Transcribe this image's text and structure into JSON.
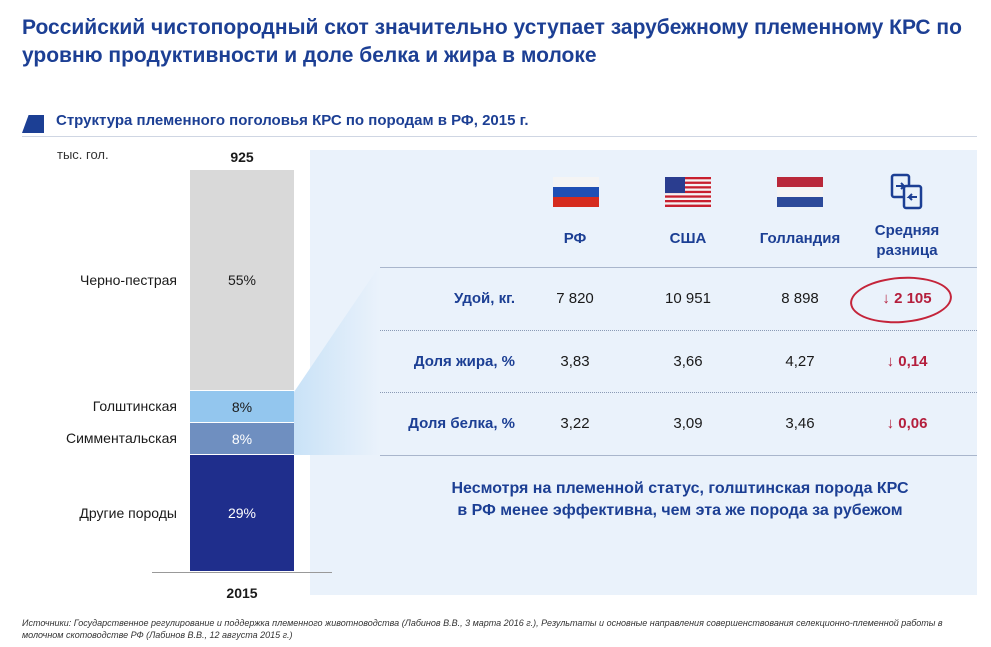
{
  "title": "Российский чистопородный скот значительно уступает зарубежному племенному КРС по уровню продуктивности и доле белка и жира в молоке",
  "section_title": "Структура племенного поголовья КРС по породам в РФ, 2015 г.",
  "colors": {
    "brand": "#1c3f94",
    "accent_red": "#b41e3c",
    "panel_bg": "#eaf2fb"
  },
  "chart_data": {
    "type": "bar",
    "stacked": true,
    "title": "Структура племенного поголовья КРС по породам в РФ, 2015 г.",
    "ylabel": "тыс. гол.",
    "categories": [
      "2015"
    ],
    "total": 925,
    "total_label": "925",
    "year_label": "2015",
    "series": [
      {
        "name": "Другие породы",
        "values": [
          29
        ],
        "label": "29%",
        "color": "#1f2e8c"
      },
      {
        "name": "Симментальская",
        "values": [
          8
        ],
        "label": "8%",
        "color": "#6f8fc0"
      },
      {
        "name": "Голштинская",
        "values": [
          8
        ],
        "label": "8%",
        "color": "#93c6ee"
      },
      {
        "name": "Черно-пестрая",
        "values": [
          55
        ],
        "label": "55%",
        "color": "#d9d9d9"
      }
    ]
  },
  "comparison": {
    "columns": [
      {
        "label": "РФ",
        "flag": "russia-flag"
      },
      {
        "label": "США",
        "flag": "usa-flag"
      },
      {
        "label": "Голландия",
        "flag": "netherlands-flag"
      }
    ],
    "diff_header_line1": "Средняя",
    "diff_header_line2": "разница",
    "diff_icon": "compare-icon",
    "rows": [
      {
        "label": "Удой, кг.",
        "values": [
          "7 820",
          "10 951",
          "8 898"
        ],
        "diff_arrow": "↓",
        "diff": "2 105"
      },
      {
        "label": "Доля жира, %",
        "values": [
          "3,83",
          "3,66",
          "4,27"
        ],
        "diff_arrow": "↓",
        "diff": "0,14"
      },
      {
        "label": "Доля белка, %",
        "values": [
          "3,22",
          "3,09",
          "3,46"
        ],
        "diff_arrow": "↓",
        "diff": "0,06"
      }
    ]
  },
  "conclusion_line1": "Несмотря на племенной статус, голштинская порода КРС",
  "conclusion_line2": "в РФ менее эффективна, чем эта же порода за рубежом",
  "source": "Источники: Государственное регулирование и поддержка племенного животноводства (Лабинов В.В., 3 марта 2016 г.), Результаты и основные направления совершенствования селекционно-племенной работы в молочном скотоводстве РФ (Лабинов В.В., 12 августа 2015 г.)"
}
